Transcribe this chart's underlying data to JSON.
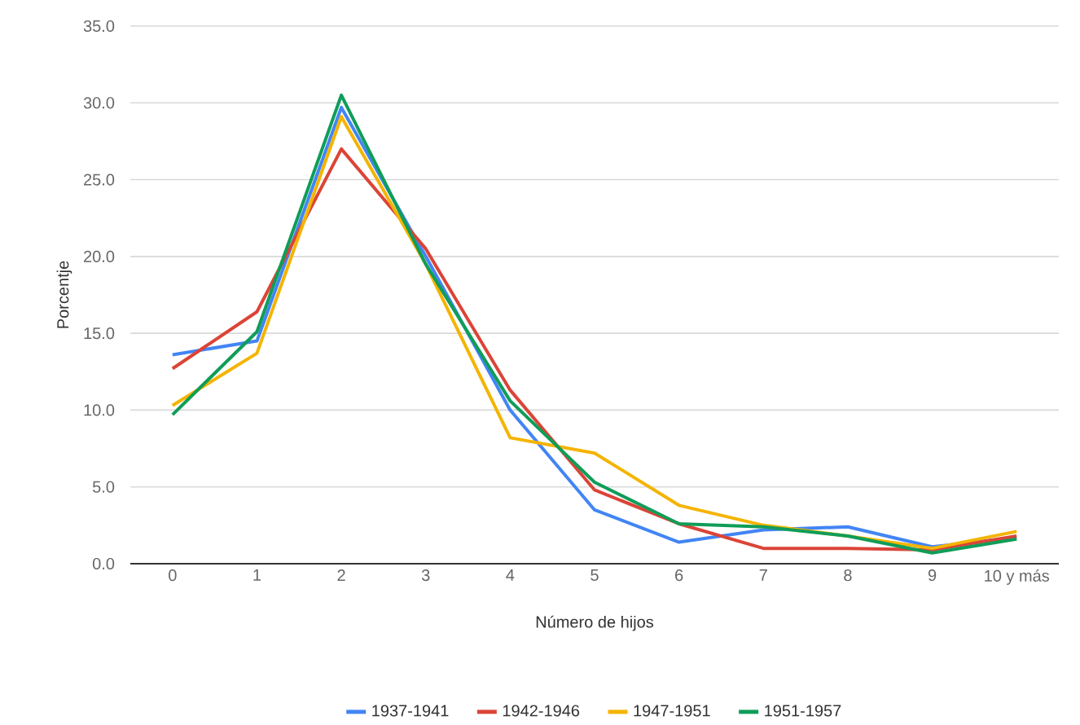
{
  "chart_data": {
    "type": "line",
    "xlabel": "Número de hijos",
    "ylabel": "Porcentje",
    "categories": [
      "0",
      "1",
      "2",
      "3",
      "4",
      "5",
      "6",
      "7",
      "8",
      "9",
      "10 y más"
    ],
    "ylim": [
      0,
      35
    ],
    "yticks": [
      {
        "value": 0,
        "label": "0.0"
      },
      {
        "value": 5,
        "label": "5.0"
      },
      {
        "value": 10,
        "label": "10.0"
      },
      {
        "value": 15,
        "label": "15.0"
      },
      {
        "value": 20,
        "label": "20.0"
      },
      {
        "value": 25,
        "label": "25.0"
      },
      {
        "value": 30,
        "label": "30.0"
      },
      {
        "value": 35,
        "label": "35.0"
      }
    ],
    "grid": "y",
    "legend": "bottom",
    "series": [
      {
        "name": "1937-1941",
        "color": "#4285f4",
        "values": [
          13.6,
          14.5,
          29.7,
          20,
          10,
          3.5,
          1.4,
          2.2,
          2.4,
          1.1,
          1.7
        ]
      },
      {
        "name": "1942-1946",
        "color": "#db4437",
        "values": [
          12.7,
          16.4,
          27,
          20.5,
          11.3,
          4.8,
          2.6,
          1.0,
          1.0,
          0.9,
          1.8
        ]
      },
      {
        "name": "1947-1951",
        "color": "#f4b400",
        "values": [
          10.3,
          13.7,
          29.1,
          19.5,
          8.2,
          7.2,
          3.8,
          2.5,
          1.8,
          1.0,
          2.1
        ]
      },
      {
        "name": "1951-1957",
        "color": "#0f9d58",
        "values": [
          9.7,
          15.1,
          30.5,
          19.5,
          10.6,
          5.3,
          2.6,
          2.4,
          1.8,
          0.7,
          1.6
        ]
      }
    ]
  }
}
